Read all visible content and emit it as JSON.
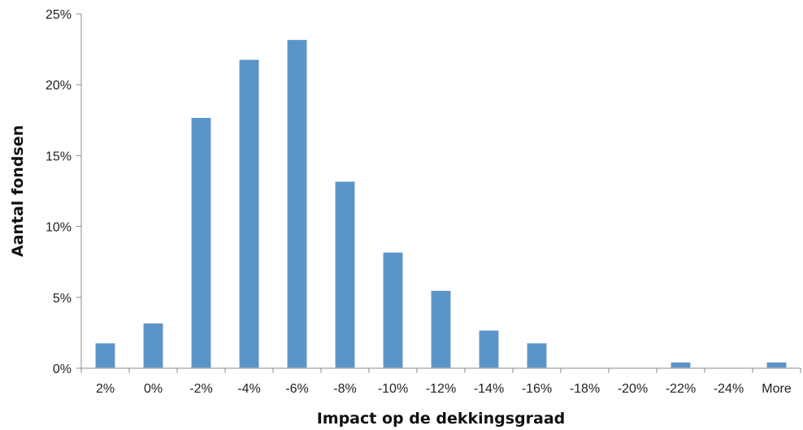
{
  "chart_data": {
    "type": "bar",
    "title": "",
    "xlabel": "Impact op de dekkingsgraad",
    "ylabel": "Aantal fondsen",
    "categories": [
      "2%",
      "0%",
      "-2%",
      "-4%",
      "-6%",
      "-8%",
      "-10%",
      "-12%",
      "-14%",
      "-16%",
      "-18%",
      "-20%",
      "-22%",
      "-24%",
      "More"
    ],
    "values": [
      1.8,
      3.2,
      17.7,
      21.8,
      23.2,
      13.2,
      8.2,
      5.5,
      2.7,
      1.8,
      0,
      0,
      0.45,
      0,
      0.45
    ],
    "ylim": [
      0,
      25
    ],
    "yticks": [
      "0%",
      "5%",
      "10%",
      "15%",
      "20%",
      "25%"
    ],
    "ytick_values": [
      0,
      5,
      10,
      15,
      20,
      25
    ],
    "grid": false,
    "legend": "none",
    "bar_color": "#5b94c9"
  }
}
